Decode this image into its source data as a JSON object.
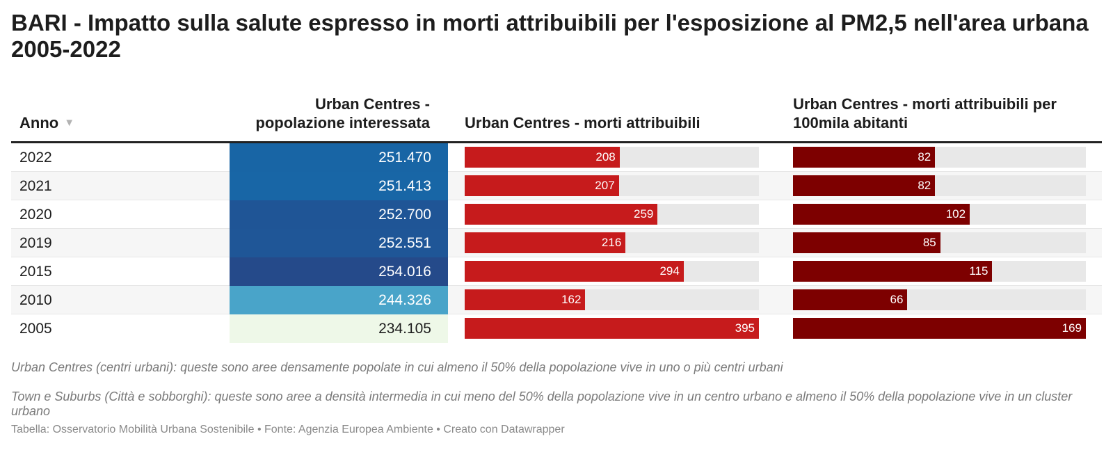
{
  "title": "BARI - Impatto sulla salute espresso in morti attribuibili per l'esposizione al PM2,5 nell'area urbana 2005-2022",
  "headers": {
    "anno": "Anno",
    "popolazione": "Urban Centres - popolazione interessata",
    "morti": "Urban Centres - morti attribuibili",
    "morti_100k": "Urban Centres - morti attribuibili per 100mila abitanti"
  },
  "sort_icon": "▼",
  "notes": [
    "Urban Centres (centri urbani): queste sono aree densamente popolate in cui almeno il 50% della popolazione vive in uno o più centri urbani",
    "Town e Suburbs (Città e sobborghi): queste sono aree a densità intermedia in cui meno del 50% della popolazione vive in un centro urbano e almeno il 50% della popolazione vive in un cluster urbano"
  ],
  "footer": "Tabella: Osservatorio Mobilità Urbana Sostenibile • Fonte: Agenzia Europea Ambiente • Creato con Datawrapper",
  "colors": {
    "morti_bar": "#c61b1c",
    "morti_100k_bar": "#7d0000",
    "bar_background": "#e8e8e8"
  },
  "chart_data": {
    "type": "table",
    "columns": [
      "Anno",
      "Urban Centres - popolazione interessata",
      "Urban Centres - morti attribuibili",
      "Urban Centres - morti attribuibili per 100mila abitanti"
    ],
    "rows": [
      {
        "anno": "2022",
        "popolazione": "251.470",
        "morti": 208,
        "morti_100k": 82,
        "pop_color": "#1865a5"
      },
      {
        "anno": "2021",
        "popolazione": "251.413",
        "morti": 207,
        "morti_100k": 82,
        "pop_color": "#1866a6"
      },
      {
        "anno": "2020",
        "popolazione": "252.700",
        "morti": 259,
        "morti_100k": 102,
        "pop_color": "#1f5596"
      },
      {
        "anno": "2019",
        "popolazione": "252.551",
        "morti": 216,
        "morti_100k": 85,
        "pop_color": "#1f5697"
      },
      {
        "anno": "2015",
        "popolazione": "254.016",
        "morti": 294,
        "morti_100k": 115,
        "pop_color": "#254a8a"
      },
      {
        "anno": "2010",
        "popolazione": "244.326",
        "morti": 162,
        "morti_100k": 66,
        "pop_color": "#49a4c9"
      },
      {
        "anno": "2005",
        "popolazione": "234.105",
        "morti": 395,
        "morti_100k": 169,
        "pop_color": "#eef8e8"
      }
    ],
    "morti_max": 395,
    "morti_100k_max": 169
  }
}
